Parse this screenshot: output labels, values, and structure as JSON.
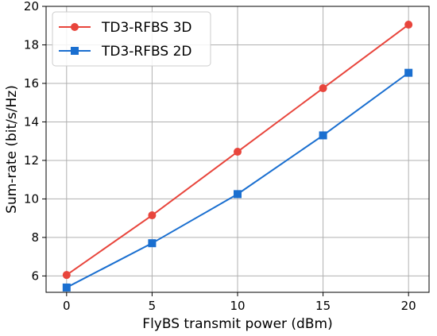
{
  "chart_data": {
    "type": "line",
    "title": "",
    "xlabel": "FlyBS transmit power (dBm)",
    "ylabel": "Sum-rate (bit/s/Hz)",
    "x": [
      0,
      5,
      10,
      15,
      20
    ],
    "xlim": [
      -1.2,
      21.2
    ],
    "ylim": [
      5.15,
      20
    ],
    "xticks": [
      0,
      5,
      10,
      15,
      20
    ],
    "yticks": [
      6,
      8,
      10,
      12,
      14,
      16,
      18,
      20
    ],
    "xtick_labels": [
      "0",
      "5",
      "10",
      "15",
      "20"
    ],
    "ytick_labels": [
      "6",
      "8",
      "10",
      "12",
      "14",
      "16",
      "18",
      "20"
    ],
    "grid": true,
    "legend_position": "top-left",
    "series": [
      {
        "name": "TD3-RFBS 3D",
        "values": [
          6.05,
          9.15,
          12.45,
          15.75,
          19.05
        ],
        "color": "#e8453c",
        "marker": "circle"
      },
      {
        "name": "TD3-RFBS 2D",
        "values": [
          5.4,
          7.7,
          10.25,
          13.3,
          16.55
        ],
        "color": "#1a6fd0",
        "marker": "square"
      }
    ]
  }
}
